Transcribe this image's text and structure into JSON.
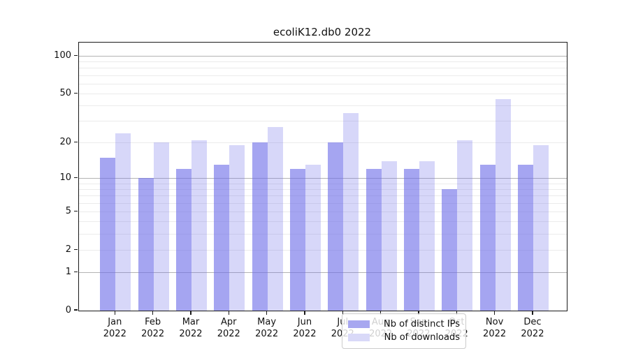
{
  "title": "ecoliK12.db0 2022",
  "chart_data": {
    "type": "bar",
    "title": "ecoliK12.db0 2022",
    "categories": [
      "Jan 2022",
      "Feb 2022",
      "Mar 2022",
      "Apr 2022",
      "May 2022",
      "Jun 2022",
      "Jul 2022",
      "Aug 2022",
      "Sep 2022",
      "Oct 2022",
      "Nov 2022",
      "Dec 2022"
    ],
    "x_tick_month_labels": [
      "Jan",
      "Feb",
      "Mar",
      "Apr",
      "May",
      "Jun",
      "Jul",
      "Aug",
      "Sep",
      "Oct",
      "Nov",
      "Dec"
    ],
    "x_tick_year_label": "2022",
    "series": [
      {
        "name": "Nb of distinct IPs",
        "color": "#a7a7f0",
        "values": [
          15,
          10,
          12,
          13,
          20,
          12,
          20,
          12,
          12,
          8,
          13,
          13
        ]
      },
      {
        "name": "Nb of downloads",
        "color": "#d9d9f8",
        "values": [
          24,
          20,
          21,
          19,
          27,
          13,
          35,
          14,
          14,
          21,
          45,
          19
        ]
      }
    ],
    "yscale": "log1p",
    "ylabel": "",
    "xlabel": "",
    "y_tick_values": [
      0,
      1,
      2,
      5,
      10,
      20,
      50,
      100
    ],
    "y_minor_gridlines": [
      2,
      3,
      4,
      5,
      6,
      7,
      8,
      9,
      20,
      30,
      40,
      50,
      60,
      70,
      80,
      90
    ],
    "y_major_gridlines": [
      1,
      10,
      100
    ],
    "ylim": [
      0,
      128
    ],
    "grid": "on",
    "legend_position": "lower center",
    "colors": {
      "bar_ips_fill": "rgba(110,110,232,0.62)",
      "bar_downloads_fill": "rgba(110,110,232,0.28)",
      "legend_swatch_ips": "#a7a7f0",
      "legend_swatch_downloads": "#d9d9f8",
      "grid_major": "#b3b3b3",
      "grid_minor": "#ebebeb",
      "spine": "#1a1a1a"
    }
  }
}
